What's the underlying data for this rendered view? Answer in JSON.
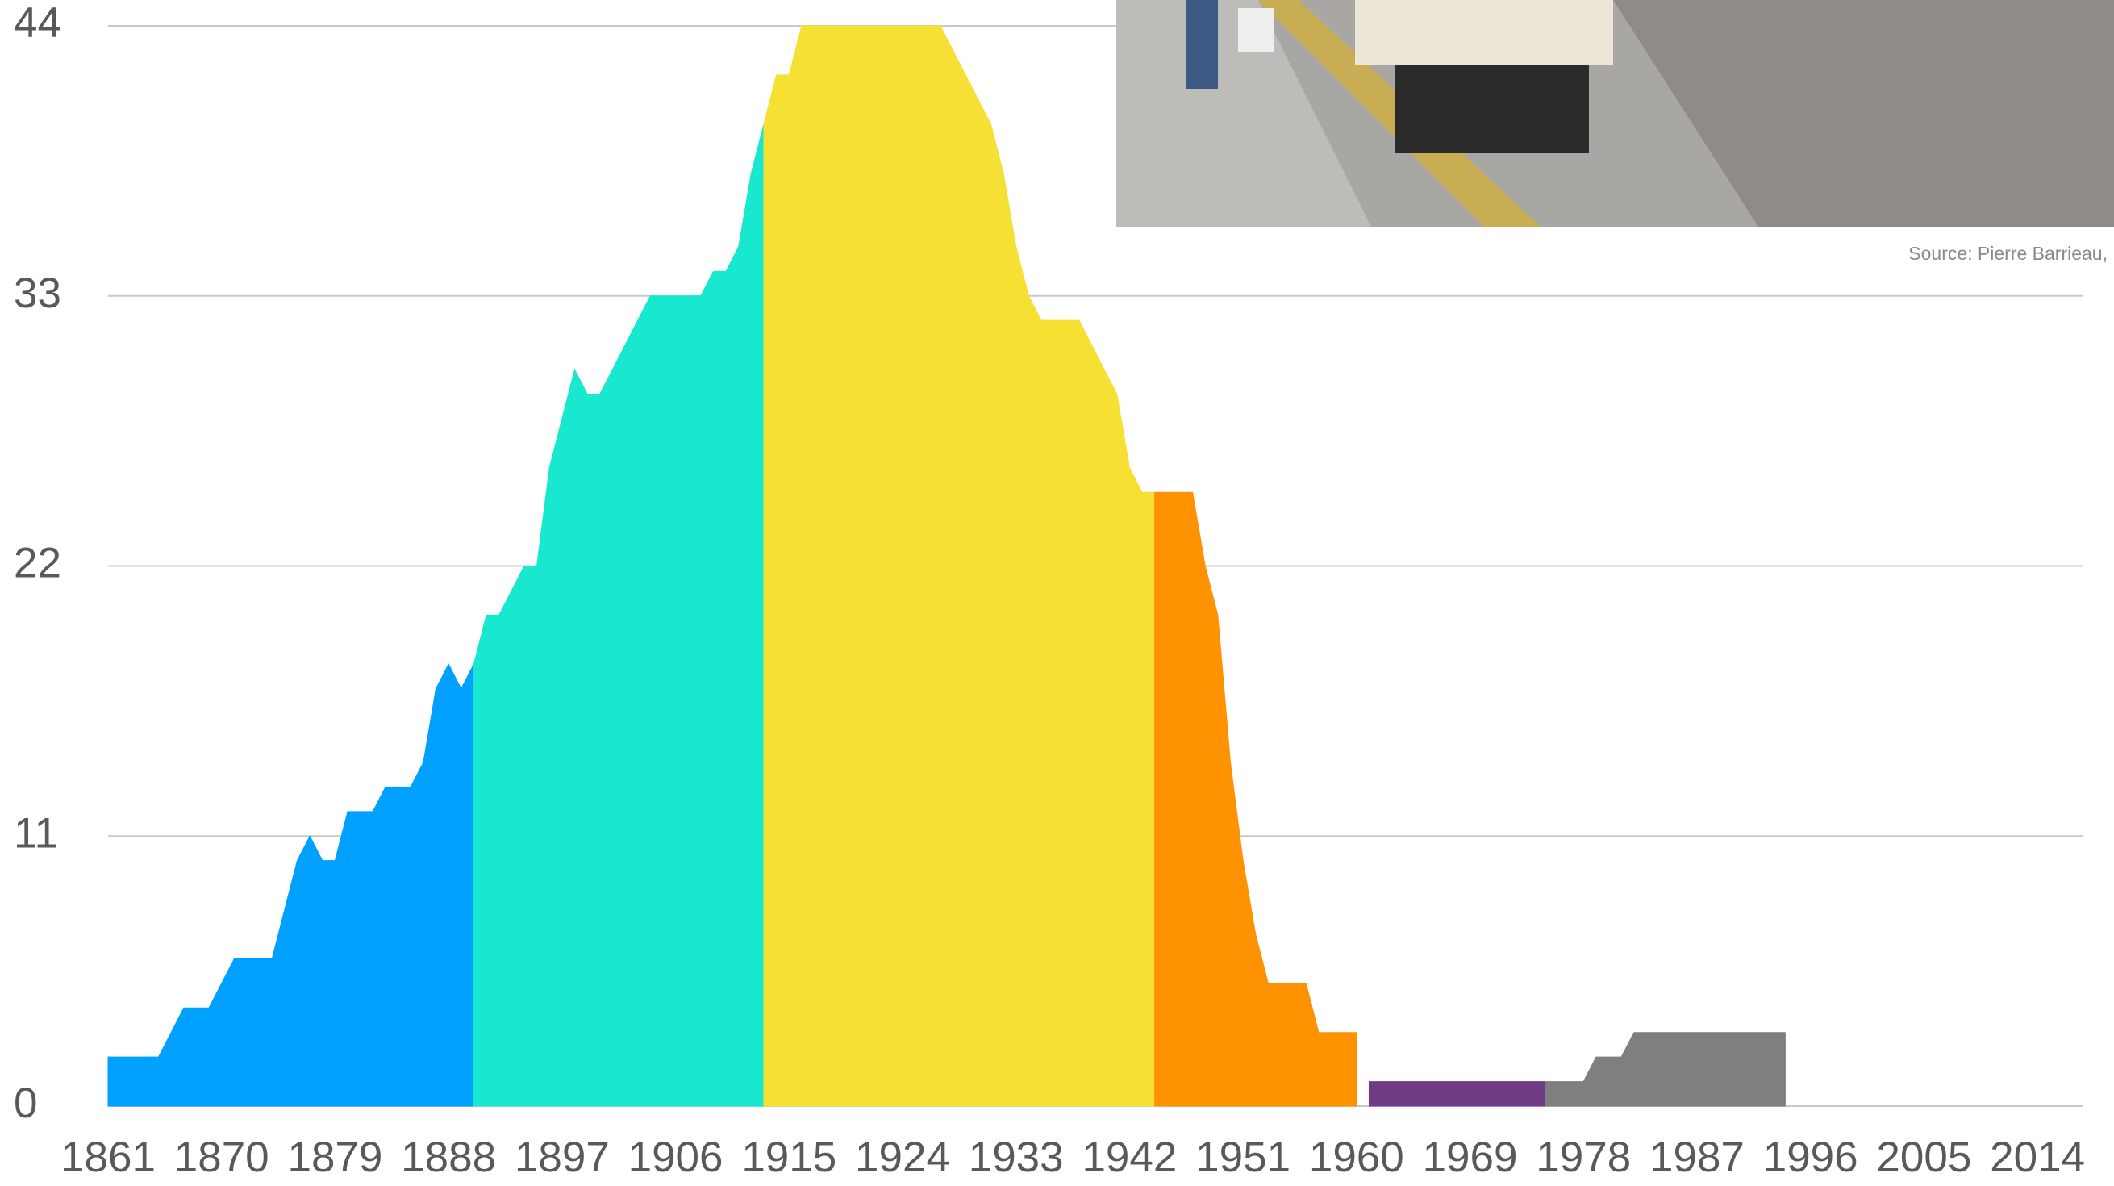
{
  "chart_data": {
    "type": "area",
    "annotation": "Source: Pierre Barrieau,",
    "xlim": [
      1861,
      2017
    ],
    "xticks": [
      1861,
      1870,
      1879,
      1888,
      1897,
      1906,
      1915,
      1924,
      1933,
      1942,
      1951,
      1960,
      1969,
      1978,
      1987,
      1996,
      2005,
      2014
    ],
    "ylim": [
      0,
      44
    ],
    "yticks": [
      0,
      11,
      22,
      33,
      44
    ],
    "grid": true,
    "series": [
      {
        "color": "#00a0ff",
        "x": [
          1861,
          1862,
          1863,
          1864,
          1865,
          1866,
          1867,
          1868,
          1869,
          1870,
          1871,
          1872,
          1873,
          1874,
          1875,
          1876,
          1877,
          1878,
          1879,
          1880,
          1881,
          1882,
          1883,
          1884,
          1885,
          1886,
          1887,
          1888,
          1889,
          1890
        ],
        "values": [
          2,
          2,
          2,
          2,
          2,
          3,
          4,
          4,
          4,
          5,
          6,
          6,
          6,
          6,
          8,
          10,
          11,
          10,
          10,
          12,
          12,
          12,
          13,
          13,
          13,
          14,
          17,
          18,
          17,
          18
        ]
      },
      {
        "color": "#17e8cf",
        "x": [
          1890,
          1891,
          1892,
          1893,
          1894,
          1895,
          1896,
          1897,
          1898,
          1899,
          1900,
          1901,
          1902,
          1903,
          1904,
          1905,
          1906,
          1907,
          1908,
          1909,
          1910,
          1911,
          1912,
          1913
        ],
        "values": [
          18,
          20,
          20,
          21,
          22,
          22,
          26,
          28,
          30,
          29,
          29,
          30,
          31,
          32,
          33,
          33,
          33,
          33,
          33,
          34,
          34,
          35,
          38,
          40
        ]
      },
      {
        "color": "#f7e034",
        "x": [
          1913,
          1914,
          1915,
          1916,
          1917,
          1918,
          1919,
          1920,
          1921,
          1922,
          1923,
          1924,
          1925,
          1926,
          1927,
          1928,
          1929,
          1930,
          1931,
          1932,
          1933,
          1934,
          1935,
          1936,
          1937,
          1938,
          1939,
          1940,
          1941,
          1942,
          1943,
          1944
        ],
        "values": [
          40,
          42,
          42,
          44,
          44,
          44,
          44,
          44,
          44,
          44,
          44,
          44,
          44,
          44,
          44,
          43,
          42,
          41,
          40,
          38,
          35,
          33,
          32,
          32,
          32,
          32,
          31,
          30,
          29,
          26,
          25,
          25
        ]
      },
      {
        "color": "#ff9200",
        "x": [
          1944,
          1945,
          1946,
          1947,
          1948,
          1949,
          1950,
          1951,
          1952,
          1953,
          1954,
          1955,
          1956,
          1957,
          1958,
          1959,
          1960
        ],
        "values": [
          25,
          25,
          25,
          25,
          22,
          20,
          14,
          10,
          7,
          5,
          5,
          5,
          5,
          3,
          3,
          3,
          3
        ]
      },
      {
        "color": "#6f3c85",
        "x": [
          1961,
          1962,
          1963,
          1964,
          1965,
          1966,
          1967,
          1968,
          1969,
          1970,
          1971,
          1972,
          1973,
          1974,
          1975
        ],
        "values": [
          1,
          1,
          1,
          1,
          1,
          1,
          1,
          1,
          1,
          1,
          1,
          1,
          1,
          1,
          1
        ]
      },
      {
        "color": "#7f7f7f",
        "x": [
          1975,
          1976,
          1977,
          1978,
          1979,
          1980,
          1981,
          1982,
          1983,
          1984,
          1985,
          1986,
          1987,
          1988,
          1989,
          1990,
          1991,
          1992,
          1993,
          1994
        ],
        "values": [
          1,
          1,
          1,
          1,
          2,
          2,
          2,
          3,
          3,
          3,
          3,
          3,
          3,
          3,
          3,
          3,
          3,
          3,
          3,
          3
        ]
      }
    ]
  }
}
